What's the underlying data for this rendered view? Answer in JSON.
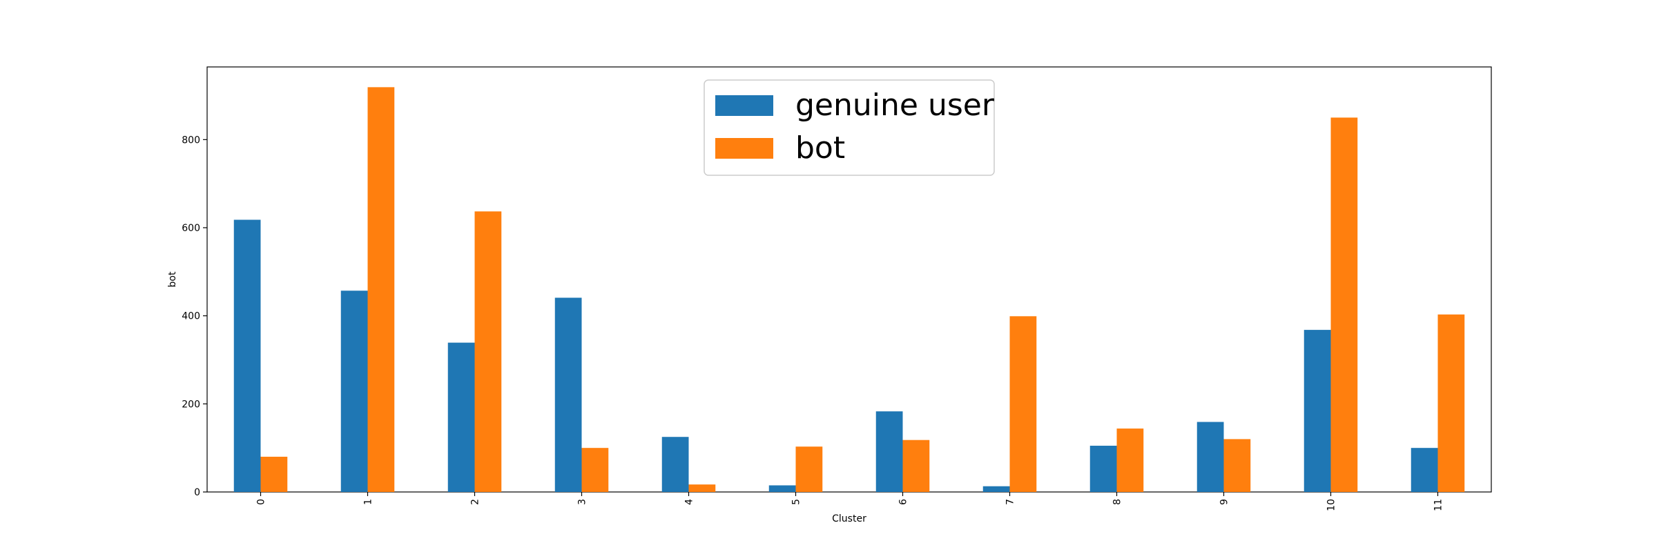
{
  "chart_data": {
    "type": "bar",
    "title": "",
    "xlabel": "Cluster",
    "ylabel": "bot",
    "categories": [
      "0",
      "1",
      "2",
      "3",
      "4",
      "5",
      "6",
      "7",
      "8",
      "9",
      "10",
      "11"
    ],
    "series": [
      {
        "name": "genuine user",
        "color": "#1f77b4",
        "values": [
          618,
          457,
          339,
          441,
          125,
          15,
          183,
          13,
          105,
          159,
          368,
          100
        ]
      },
      {
        "name": "bot",
        "color": "#ff7f0e",
        "values": [
          80,
          919,
          637,
          100,
          17,
          103,
          118,
          399,
          144,
          120,
          850,
          403
        ]
      }
    ],
    "ylim": [
      0,
      965
    ],
    "yticks": [
      0,
      200,
      400,
      600,
      800
    ],
    "xtick_rotation": "vertical",
    "grid": false,
    "legend": {
      "placement": "upper-center"
    }
  }
}
